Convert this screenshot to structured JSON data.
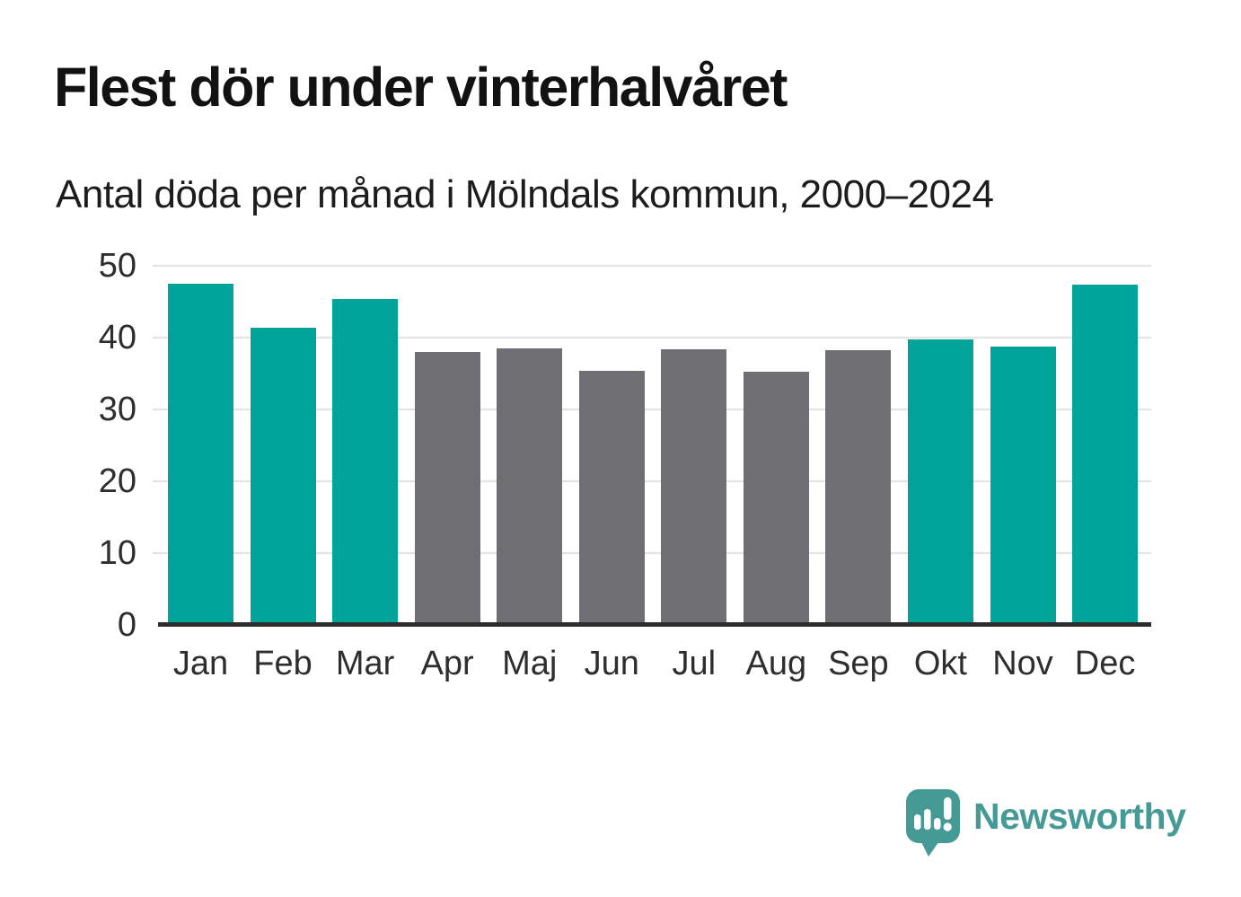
{
  "header": {
    "title": "Flest dör under vinterhalvåret",
    "subtitle": "Antal döda per månad i Mölndals kommun, 2000–2024"
  },
  "chart_data": {
    "type": "bar",
    "title": "Flest dör under vinterhalvåret",
    "subtitle": "Antal döda per månad i Mölndals kommun, 2000–2024",
    "categories": [
      "Jan",
      "Feb",
      "Mar",
      "Apr",
      "Maj",
      "Jun",
      "Jul",
      "Aug",
      "Sep",
      "Okt",
      "Nov",
      "Dec"
    ],
    "values": [
      47.5,
      41.4,
      45.4,
      38.0,
      38.5,
      35.4,
      38.4,
      35.3,
      38.2,
      39.7,
      38.8,
      47.4
    ],
    "bar_color_keys": [
      "winter",
      "winter",
      "winter",
      "summer",
      "summer",
      "summer",
      "summer",
      "summer",
      "summer",
      "winter",
      "winter",
      "winter"
    ],
    "xlabel": "",
    "ylabel": "",
    "ylim": [
      0,
      50
    ],
    "yticks": [
      0,
      10,
      20,
      30,
      40,
      50
    ],
    "grid": true,
    "legend": false
  },
  "colors": {
    "winter": "#00a499",
    "summer": "#6e6e73",
    "axis_line": "#2d2d2d",
    "gridline": "#e2e2e2",
    "text": "#1c1c1c",
    "brand_teal": "#459a95"
  },
  "branding": {
    "logo_text": "Newsworthy",
    "logo_icon": "newsworthy-speech-bubble-bar-chart-icon"
  }
}
